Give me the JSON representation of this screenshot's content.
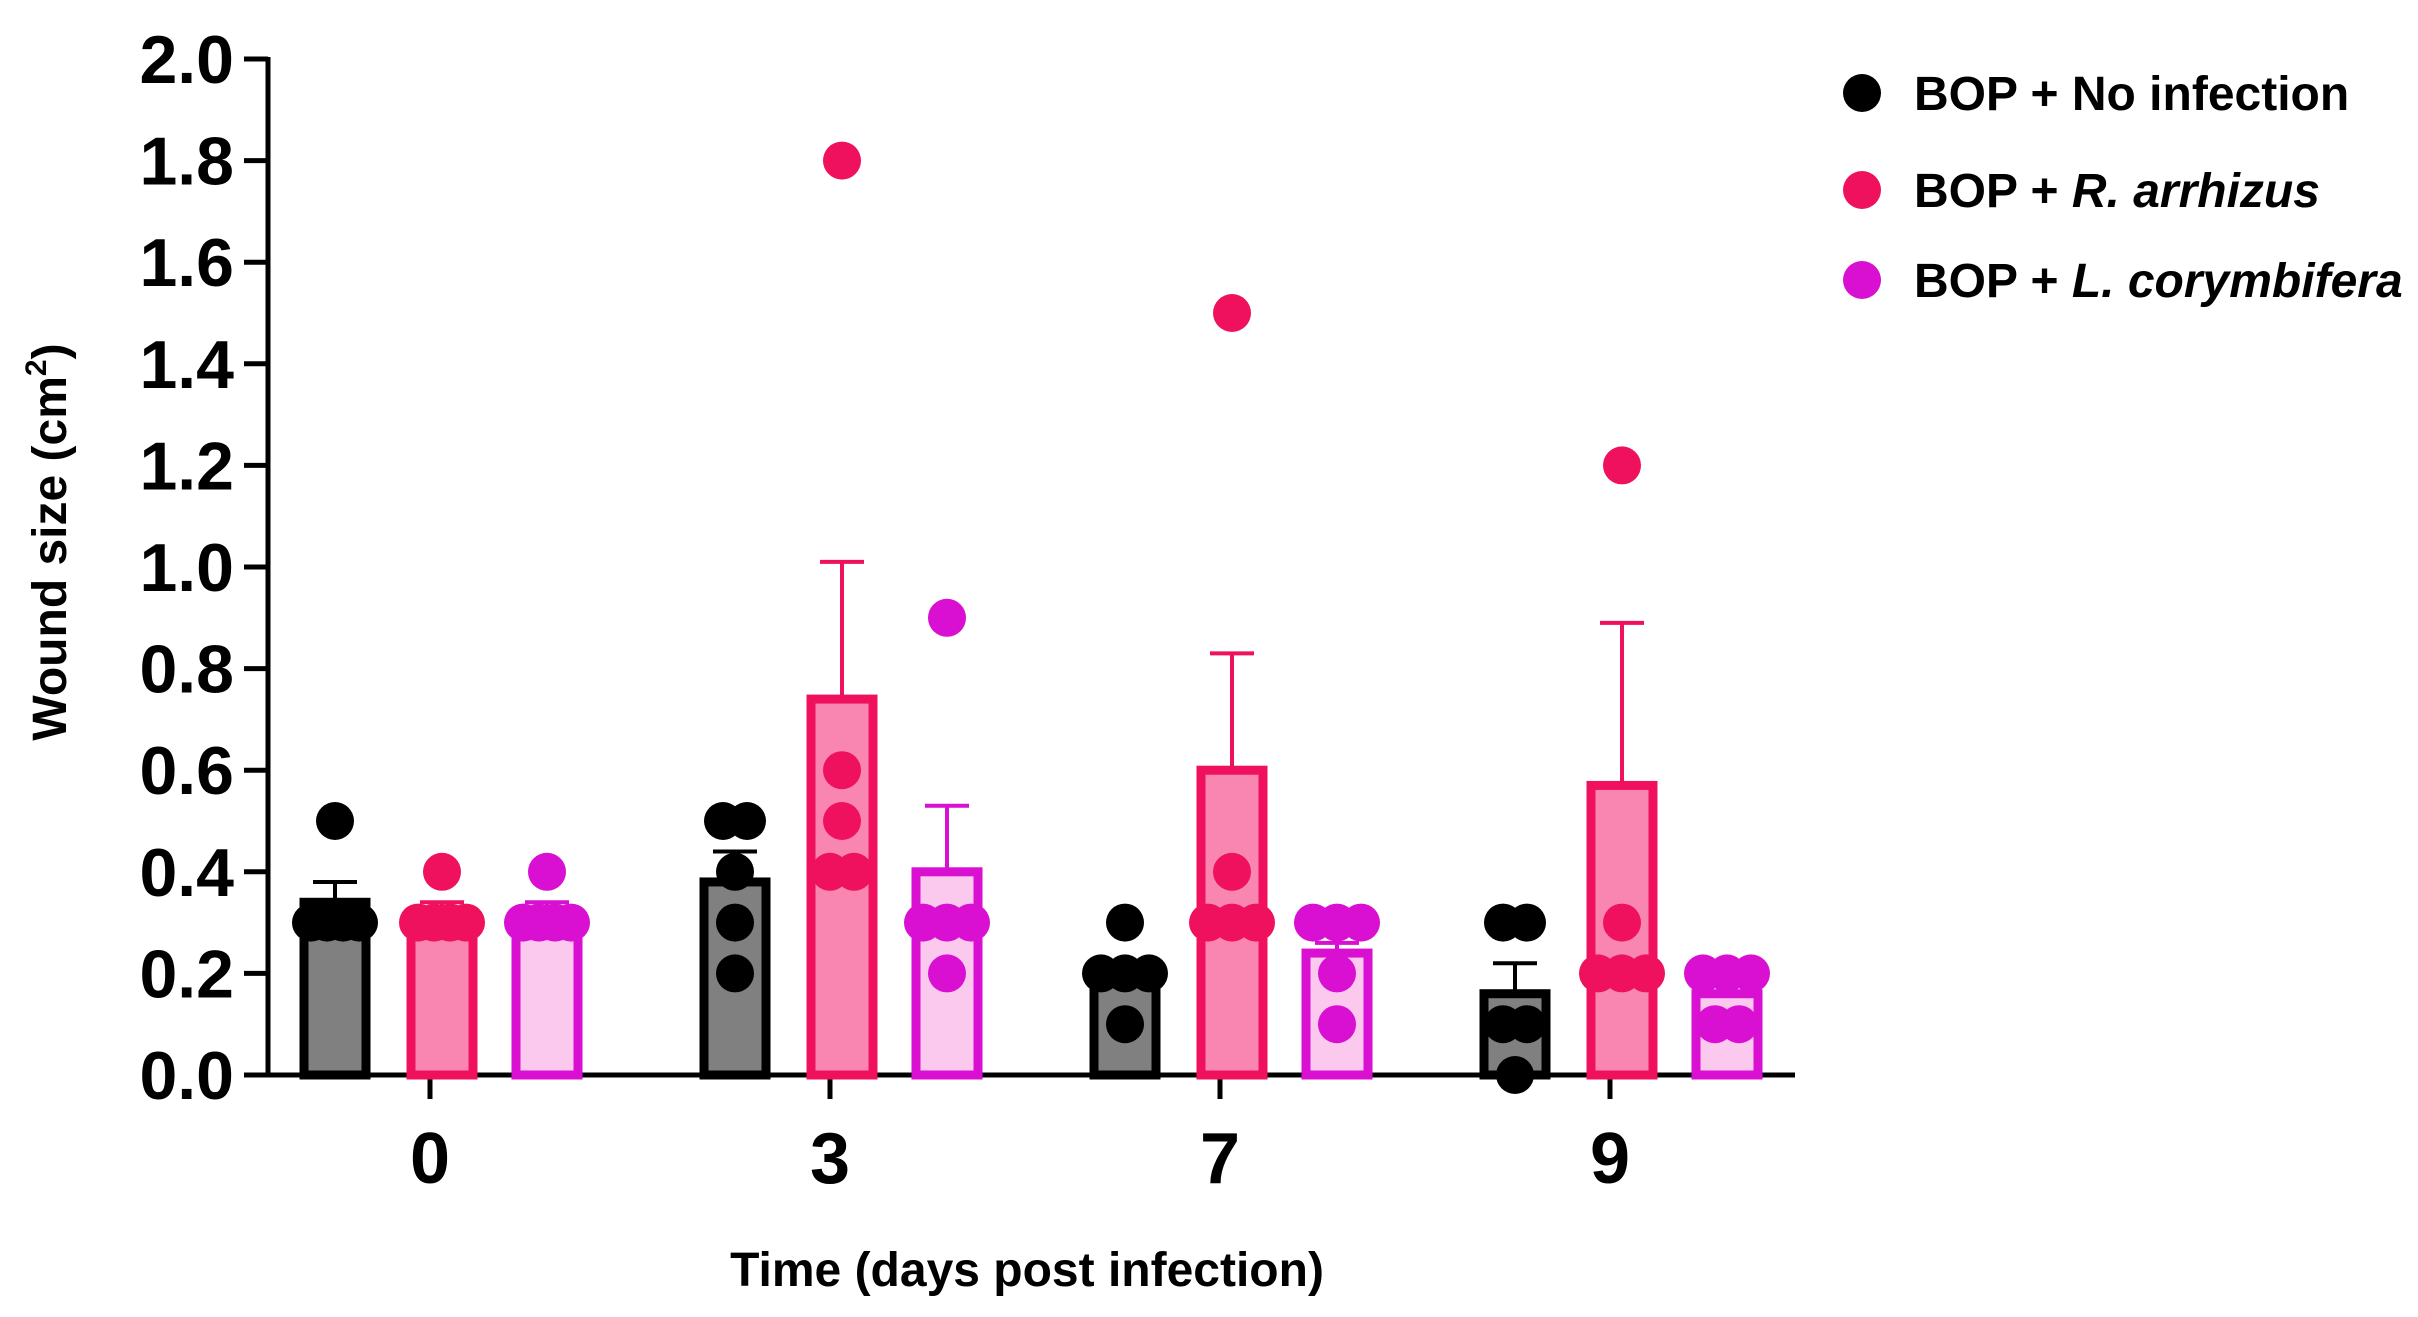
{
  "chart_data": {
    "type": "bar",
    "title": "",
    "xlabel": "Time (days post infection)",
    "ylabel_main": "Wound size (cm",
    "ylabel_sup": "2",
    "ylabel_close": ")",
    "categories": [
      "0",
      "3",
      "7",
      "9"
    ],
    "ylim": [
      0,
      2.0
    ],
    "yticks": [
      "0.0",
      "0.2",
      "0.4",
      "0.6",
      "0.8",
      "1.0",
      "1.2",
      "1.4",
      "1.6",
      "1.8",
      "2.0"
    ],
    "series": [
      {
        "name": "BOP + No infection",
        "legend_prefix": "BOP + ",
        "legend_text": "No infection",
        "legend_italic": false,
        "edge_color": "#000000",
        "fill_color": "#808080",
        "values": [
          0.34,
          0.38,
          0.2,
          0.16
        ],
        "errors": [
          0.04,
          0.06,
          0.02,
          0.06
        ],
        "points": [
          [
            0.5,
            0.3,
            0.3,
            0.3,
            0.3
          ],
          [
            0.5,
            0.5,
            0.4,
            0.3,
            0.2
          ],
          [
            0.3,
            0.2,
            0.2,
            0.2,
            0.1
          ],
          [
            0.3,
            0.3,
            0.1,
            0.1,
            0.0
          ]
        ]
      },
      {
        "name": "BOP + R. arrhizus",
        "legend_prefix": "BOP + ",
        "legend_text": "R. arrhizus",
        "legend_italic": true,
        "edge_color": "#f0115e",
        "fill_color": "#f986b0",
        "values": [
          0.32,
          0.74,
          0.6,
          0.57
        ],
        "errors": [
          0.02,
          0.27,
          0.23,
          0.32
        ],
        "points": [
          [
            0.4,
            0.3,
            0.3,
            0.3,
            0.3
          ],
          [
            1.8,
            0.6,
            0.5,
            0.4,
            0.4
          ],
          [
            1.5,
            0.4,
            0.3,
            0.3,
            0.3
          ],
          [
            1.2,
            0.3,
            0.2,
            0.2,
            0.2
          ]
        ]
      },
      {
        "name": "BOP + L. corymbifera",
        "legend_prefix": "BOP + ",
        "legend_text": "L. corymbifera",
        "legend_italic": true,
        "edge_color": "#d90fd1",
        "fill_color": "#fbc9ee",
        "values": [
          0.32,
          0.4,
          0.24,
          0.16
        ],
        "errors": [
          0.02,
          0.13,
          0.02,
          0.02
        ],
        "points": [
          [
            0.4,
            0.3,
            0.3,
            0.3,
            0.3
          ],
          [
            0.9,
            0.3,
            0.3,
            0.3,
            0.2
          ],
          [
            0.3,
            0.3,
            0.3,
            0.2,
            0.1
          ],
          [
            0.2,
            0.2,
            0.2,
            0.1,
            0.1
          ]
        ]
      }
    ],
    "legend_position": "top-right",
    "grid": false
  }
}
